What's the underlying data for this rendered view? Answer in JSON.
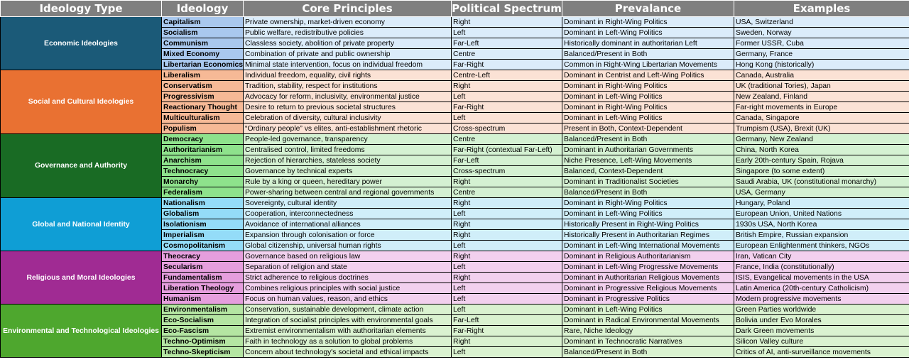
{
  "headers": [
    "Ideology Type",
    "Ideology",
    "Core Principles",
    "Political Spectrum",
    "Prevalance",
    "Examples"
  ],
  "groups": [
    {
      "name": "Economic Ideologies",
      "color": "#1b5a78",
      "name_bg": "#a9c8ee",
      "row_bg": "#dbecfa",
      "rows": [
        [
          "Capitalism",
          "Private ownership, market-driven economy",
          "Right",
          "Dominant in Right-Wing Politics",
          "USA, Switzerland"
        ],
        [
          "Socialism",
          "Public welfare, redistributive policies",
          "Left",
          "Dominant in Left-Wing Politics",
          "Sweden, Norway"
        ],
        [
          "Communism",
          "Classless society, abolition of private property",
          "Far-Left",
          "Historically dominant in authoritarian Left",
          "Former USSR, Cuba"
        ],
        [
          "Mixed Economy",
          "Combination of private and public ownership",
          "Centre",
          "Balanced/Present in Both",
          "Germany, France"
        ],
        [
          "Libertarian Economics",
          "Minimal state intervention, focus on individual freedom",
          "Far-Right",
          "Common in Right-Wing Libertarian Movements",
          "Hong Kong (historically)"
        ]
      ]
    },
    {
      "name": "Social and Cultural Ideologies",
      "color": "#e97132",
      "name_bg": "#f6b996",
      "row_bg": "#fbe2d5",
      "rows": [
        [
          "Liberalism",
          "Individual freedom, equality, civil rights",
          "Centre-Left",
          "Dominant in Centrist and Left-Wing Politics",
          "Canada, Australia"
        ],
        [
          "Conservatism",
          "Tradition, stability, respect for institutions",
          "Right",
          "Dominant in Right-Wing Politics",
          "UK (traditional Tories), Japan"
        ],
        [
          "Progressivism",
          "Advocacy for reform, inclusivity, environmental justice",
          "Left",
          "Dominant in Left-Wing Politics",
          "New Zealand, Finland"
        ],
        [
          "Reactionary Thought",
          "Desire to return to previous societal structures",
          "Far-Right",
          "Dominant in Right-Wing Politics",
          "Far-right movements in Europe"
        ],
        [
          "Multiculturalism",
          "Celebration of diversity, cultural inclusivity",
          "Left",
          "Dominant in Left-Wing Politics",
          "Canada, Singapore"
        ],
        [
          "Populism",
          "“Ordinary people” vs elites, anti-establishment rhetoric",
          "Cross-spectrum",
          "Present in Both, Context-Dependent",
          "Trumpism (USA), Brexit (UK)"
        ]
      ]
    },
    {
      "name": "Governance and Authority",
      "color": "#196b24",
      "name_bg": "#8ee28c",
      "row_bg": "#d4f1d2",
      "rows": [
        [
          "Democracy",
          "People-led governance, transparency",
          "Centre",
          "Balanced/Present in Both",
          "Germany, New Zealand"
        ],
        [
          "Authoritarianism",
          "Centralised control, limited freedoms",
          "Far-Right (contextual Far-Left)",
          "Dominant in Authoritarian Governments",
          "China, North Korea"
        ],
        [
          "Anarchism",
          "Rejection of hierarchies, stateless society",
          "Far-Left",
          "Niche Presence, Left-Wing Movements",
          "Early 20th-century Spain, Rojava"
        ],
        [
          "Technocracy",
          "Governance by technical experts",
          "Cross-spectrum",
          "Balanced, Context-Dependent",
          "Singapore (to some extent)"
        ],
        [
          "Monarchy",
          "Rule by a king or queen, hereditary power",
          "Right",
          "Dominant in Traditionalist Societies",
          "Saudi Arabia, UK (constitutional monarchy)"
        ],
        [
          "Federalism",
          "Power-sharing between central and regional governments",
          "Centre",
          "Balanced/Present in Both",
          "USA, Germany"
        ]
      ]
    },
    {
      "name": "Global and National Identity",
      "color": "#0f9ed5",
      "name_bg": "#94dcf8",
      "row_bg": "#d0eef9",
      "rows": [
        [
          "Nationalism",
          "Sovereignty, cultural identity",
          "Right",
          "Dominant in Right-Wing Politics",
          "Hungary, Poland"
        ],
        [
          "Globalism",
          "Cooperation, interconnectedness",
          "Left",
          "Dominant in Left-Wing Politics",
          "European Union, United Nations"
        ],
        [
          "Isolationism",
          "Avoidance of international alliances",
          "Right",
          "Historically Present in Right-Wing Politics",
          "1930s USA, North Korea"
        ],
        [
          "Imperialism",
          "Expansion through colonisation or force",
          "Right",
          "Historically Present in Authoritarian Regimes",
          "British Empire, Russian expansion"
        ],
        [
          "Cosmopolitanism",
          "Global citizenship, universal human rights",
          "Left",
          "Dominant in Left-Wing International Movements",
          "European Enlightenment thinkers, NGOs"
        ]
      ]
    },
    {
      "name": "Religious and Moral Ideologies",
      "color": "#a02b93",
      "name_bg": "#e59edd",
      "row_bg": "#f2d0ee",
      "rows": [
        [
          "Theocracy",
          "Governance based on religious law",
          "Right",
          "Dominant in Religious Authoritarianism",
          "Iran, Vatican City"
        ],
        [
          "Secularism",
          "Separation of religion and state",
          "Left",
          "Dominant in Left-Wing Progressive Movements",
          "France, India (constitutionally)"
        ],
        [
          "Fundamentalism",
          "Strict adherence to religious doctrines",
          "Right",
          "Dominant in Authoritarian Religious Movements",
          "ISIS, Evangelical movements in the USA"
        ],
        [
          "Liberation Theology",
          "Combines religious principles with social justice",
          "Left",
          "Dominant in Progressive Religious Movements",
          "Latin America (20th-century Catholicism)"
        ],
        [
          "Humanism",
          "Focus on human values, reason, and ethics",
          "Left",
          "Dominant in Progressive Politics",
          "Modern progressive movements"
        ]
      ]
    },
    {
      "name": "Environmental and Technological Ideologies",
      "color": "#4ea72e",
      "name_bg": "#b4e5a2",
      "row_bg": "#daf2d0",
      "rows": [
        [
          "Environmentalism",
          "Conservation, sustainable development, climate action",
          "Left",
          "Dominant in Left-Wing Politics",
          "Green Parties worldwide"
        ],
        [
          "Eco-Socialism",
          "Integration of socialist principles with environmental goals",
          "Far-Left",
          "Dominant in Radical Environmental Movements",
          "Bolivia under Evo Morales"
        ],
        [
          "Eco-Fascism",
          "Extremist environmentalism with authoritarian elements",
          "Far-Right",
          "Rare, Niche Ideology",
          "Dark Green movements"
        ],
        [
          "Techno-Optimism",
          "Faith in technology as a solution to global problems",
          "Right",
          "Dominant in Technocratic Narratives",
          "Silicon Valley culture"
        ],
        [
          "Techno-Skepticism",
          "Concern about technology's societal and ethical impacts",
          "Left",
          "Balanced/Present in Both",
          "Critics of AI, anti-surveillance movements"
        ]
      ]
    }
  ]
}
